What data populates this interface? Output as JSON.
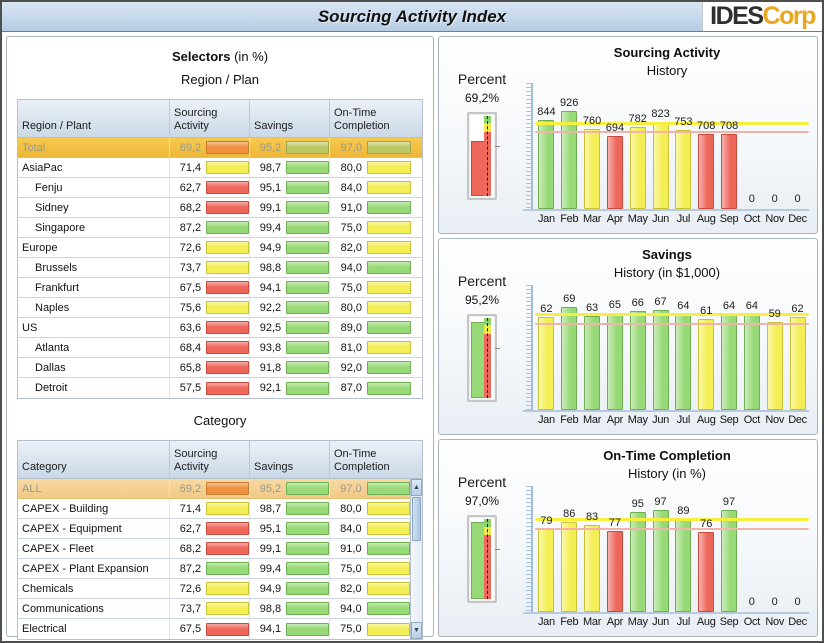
{
  "header": {
    "title": "Sourcing Activity Index",
    "logo_ides": "IDES",
    "logo_corp": "Corp"
  },
  "selectors": {
    "heading": "Selectors",
    "heading_suffix": " (in %)",
    "region_section_label": "Region / Plan",
    "category_section_label": "Category",
    "region_table": {
      "columns": [
        "Region / Plant",
        "Sourcing Activity",
        "Savings",
        "On-Time Completion"
      ],
      "selected_style": "gold",
      "rows": [
        {
          "name": "Total",
          "indent": false,
          "selected": true,
          "sa": "69,2",
          "sa_c": "orange",
          "sv": "95,2",
          "sv_c": "olive",
          "ot": "97,0",
          "ot_c": "olive"
        },
        {
          "name": "AsiaPac",
          "indent": false,
          "selected": false,
          "sa": "71,4",
          "sa_c": "yellow",
          "sv": "98,7",
          "sv_c": "green",
          "ot": "80,0",
          "ot_c": "yellow"
        },
        {
          "name": "Fenju",
          "indent": true,
          "selected": false,
          "sa": "62,7",
          "sa_c": "red",
          "sv": "95,1",
          "sv_c": "green",
          "ot": "84,0",
          "ot_c": "yellow"
        },
        {
          "name": "Sidney",
          "indent": true,
          "selected": false,
          "sa": "68,2",
          "sa_c": "red",
          "sv": "99,1",
          "sv_c": "green",
          "ot": "91,0",
          "ot_c": "green"
        },
        {
          "name": "Singapore",
          "indent": true,
          "selected": false,
          "sa": "87,2",
          "sa_c": "green",
          "sv": "99,4",
          "sv_c": "green",
          "ot": "75,0",
          "ot_c": "yellow"
        },
        {
          "name": "Europe",
          "indent": false,
          "selected": false,
          "sa": "72,6",
          "sa_c": "yellow",
          "sv": "94,9",
          "sv_c": "green",
          "ot": "82,0",
          "ot_c": "yellow"
        },
        {
          "name": "Brussels",
          "indent": true,
          "selected": false,
          "sa": "73,7",
          "sa_c": "yellow",
          "sv": "98,8",
          "sv_c": "green",
          "ot": "94,0",
          "ot_c": "green"
        },
        {
          "name": "Frankfurt",
          "indent": true,
          "selected": false,
          "sa": "67,5",
          "sa_c": "red",
          "sv": "94,1",
          "sv_c": "green",
          "ot": "75,0",
          "ot_c": "yellow"
        },
        {
          "name": "Naples",
          "indent": true,
          "selected": false,
          "sa": "75,6",
          "sa_c": "yellow",
          "sv": "92,2",
          "sv_c": "green",
          "ot": "80,0",
          "ot_c": "yellow"
        },
        {
          "name": "US",
          "indent": false,
          "selected": false,
          "sa": "63,6",
          "sa_c": "red",
          "sv": "92,5",
          "sv_c": "green",
          "ot": "89,0",
          "ot_c": "green"
        },
        {
          "name": "Atlanta",
          "indent": true,
          "selected": false,
          "sa": "68,4",
          "sa_c": "red",
          "sv": "93,8",
          "sv_c": "green",
          "ot": "81,0",
          "ot_c": "yellow"
        },
        {
          "name": "Dallas",
          "indent": true,
          "selected": false,
          "sa": "65,8",
          "sa_c": "red",
          "sv": "91,8",
          "sv_c": "green",
          "ot": "92,0",
          "ot_c": "green"
        },
        {
          "name": "Detroit",
          "indent": true,
          "selected": false,
          "sa": "57,5",
          "sa_c": "red",
          "sv": "92,1",
          "sv_c": "green",
          "ot": "87,0",
          "ot_c": "green"
        }
      ]
    },
    "category_table": {
      "columns": [
        "Category",
        "Sourcing Activity",
        "Savings",
        "On-Time Completion"
      ],
      "selected_style": "tan",
      "has_scrollbar": true,
      "rows": [
        {
          "name": "ALL",
          "indent": false,
          "selected": true,
          "sa": "69,2",
          "sa_c": "orange",
          "sv": "95,2",
          "sv_c": "green",
          "ot": "97,0",
          "ot_c": "green"
        },
        {
          "name": "CAPEX - Building",
          "indent": false,
          "selected": false,
          "sa": "71,4",
          "sa_c": "yellow",
          "sv": "98,7",
          "sv_c": "green",
          "ot": "80,0",
          "ot_c": "yellow"
        },
        {
          "name": "CAPEX - Equipment",
          "indent": false,
          "selected": false,
          "sa": "62,7",
          "sa_c": "red",
          "sv": "95,1",
          "sv_c": "green",
          "ot": "84,0",
          "ot_c": "yellow"
        },
        {
          "name": "CAPEX - Fleet",
          "indent": false,
          "selected": false,
          "sa": "68,2",
          "sa_c": "red",
          "sv": "99,1",
          "sv_c": "green",
          "ot": "91,0",
          "ot_c": "green"
        },
        {
          "name": "CAPEX - Plant Expansion",
          "indent": false,
          "selected": false,
          "sa": "87,2",
          "sa_c": "green",
          "sv": "99,4",
          "sv_c": "green",
          "ot": "75,0",
          "ot_c": "yellow"
        },
        {
          "name": "Chemicals",
          "indent": false,
          "selected": false,
          "sa": "72,6",
          "sa_c": "yellow",
          "sv": "94,9",
          "sv_c": "green",
          "ot": "82,0",
          "ot_c": "yellow"
        },
        {
          "name": "Communications",
          "indent": false,
          "selected": false,
          "sa": "73,7",
          "sa_c": "yellow",
          "sv": "98,8",
          "sv_c": "green",
          "ot": "94,0",
          "ot_c": "green"
        },
        {
          "name": "Electrical",
          "indent": false,
          "selected": false,
          "sa": "67,5",
          "sa_c": "red",
          "sv": "94,1",
          "sv_c": "green",
          "ot": "75,0",
          "ot_c": "yellow"
        }
      ]
    }
  },
  "charts_shared": {
    "percent_label": "Percent"
  },
  "chart_data": [
    {
      "type": "bar",
      "title": "Sourcing Activity",
      "subtitle": "History",
      "percent_value": "69,2%",
      "gauge": {
        "fill_pct": 69.2,
        "status": "red"
      },
      "categories": [
        "Jan",
        "Feb",
        "Mar",
        "Apr",
        "May",
        "Jun",
        "Jul",
        "Aug",
        "Sep",
        "Oct",
        "Nov",
        "Dec"
      ],
      "values": [
        844,
        926,
        760,
        694,
        782,
        823,
        753,
        708,
        708,
        0,
        0,
        0
      ],
      "bar_status": [
        "green",
        "green",
        "yellow",
        "red",
        "yellow",
        "yellow",
        "yellow",
        "red",
        "red",
        "zero",
        "zero",
        "zero"
      ],
      "ylim": [
        0,
        1000
      ],
      "target_line_yellow": 800,
      "target_line_red": 722,
      "grid": false,
      "legend": "none"
    },
    {
      "type": "bar",
      "title": "Savings",
      "subtitle": "History (in $1,000)",
      "percent_value": "95,2%",
      "gauge": {
        "fill_pct": 95.2,
        "status": "green"
      },
      "categories": [
        "Jan",
        "Feb",
        "Mar",
        "Apr",
        "May",
        "Jun",
        "Jul",
        "Aug",
        "Sep",
        "Oct",
        "Nov",
        "Dec"
      ],
      "values": [
        62,
        69,
        63,
        65,
        66,
        67,
        64,
        61,
        64,
        64,
        59,
        62
      ],
      "bar_status": [
        "yellow",
        "green",
        "green",
        "green",
        "green",
        "green",
        "green",
        "yellow",
        "green",
        "green",
        "yellow",
        "yellow"
      ],
      "ylim": [
        0,
        70
      ],
      "target_line_yellow": 63,
      "target_line_red": 57,
      "grid": false,
      "legend": "none"
    },
    {
      "type": "bar",
      "title": "On-Time Completion",
      "subtitle": "History (in %)",
      "percent_value": "97,0%",
      "gauge": {
        "fill_pct": 97.0,
        "status": "green"
      },
      "categories": [
        "Jan",
        "Feb",
        "Mar",
        "Apr",
        "May",
        "Jun",
        "Jul",
        "Aug",
        "Sep",
        "Oct",
        "Nov",
        "Dec"
      ],
      "values": [
        79,
        86,
        83,
        77,
        95,
        97,
        89,
        76,
        97,
        0,
        0,
        0
      ],
      "bar_status": [
        "yellow",
        "yellow",
        "yellow",
        "red",
        "green",
        "green",
        "green",
        "red",
        "green",
        "zero",
        "zero",
        "zero"
      ],
      "ylim": [
        0,
        100
      ],
      "target_line_yellow": 87,
      "target_line_red": 78,
      "grid": false,
      "legend": "none"
    }
  ],
  "colors": {
    "bar_green": "#98d977",
    "bar_yellow": "#f4ee55",
    "bar_red": "#ee675b",
    "bar_orange": "#ef913f",
    "bar_olive": "#bdc967",
    "target_line_yellow": "#f7ef3e",
    "target_line_red": "#f2b3a9",
    "selected_row_gold": "#f2c043",
    "selected_row_tan": "#f5d194",
    "titlebar_blue": "#c3d6ea",
    "logo_orange": "#e9a61f"
  }
}
